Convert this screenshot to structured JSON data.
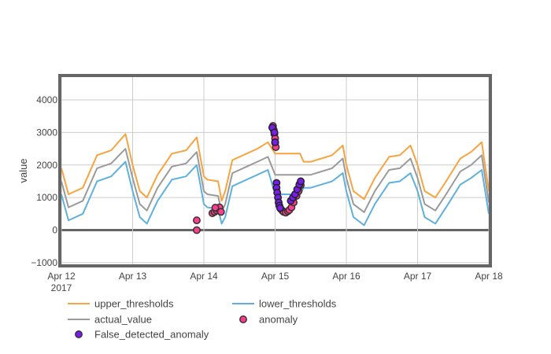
{
  "chart_data": {
    "type": "line",
    "title": "",
    "xlabel": "",
    "ylabel": "value",
    "x_start": "2017-04-12",
    "x_end": "2017-04-18",
    "xlim_days": [
      0,
      6
    ],
    "ylim": [
      -1050,
      4700
    ],
    "y_ticks": [
      -1000,
      0,
      1000,
      2000,
      3000,
      4000
    ],
    "y_tick_labels": [
      "−1000",
      "0",
      "1000",
      "2000",
      "3000",
      "4000"
    ],
    "x_ticks": [
      0,
      1,
      2,
      3,
      4,
      5,
      6
    ],
    "x_tick_labels": [
      "Apr 12",
      "Apr 13",
      "Apr 14",
      "Apr 15",
      "Apr 16",
      "Apr 17",
      "Apr 18"
    ],
    "x_tick_year": "2017",
    "grid": true,
    "legend_position": "bottom",
    "series": [
      {
        "name": "upper_thresholds",
        "color": "#f7a440",
        "x": [
          0,
          0.1,
          0.3,
          0.5,
          0.7,
          0.9,
          1.0,
          1.1,
          1.2,
          1.35,
          1.55,
          1.75,
          1.9,
          2.0,
          2.05,
          2.2,
          2.25,
          2.3,
          2.4,
          2.6,
          2.75,
          2.9,
          3.0,
          3.35,
          3.4,
          3.5,
          3.65,
          3.8,
          3.95,
          4.0,
          4.1,
          4.25,
          4.4,
          4.6,
          4.75,
          4.9,
          5.0,
          5.1,
          5.25,
          5.4,
          5.6,
          5.75,
          5.9,
          6.0
        ],
        "y": [
          1900,
          1100,
          1300,
          2300,
          2450,
          2950,
          2000,
          1200,
          1000,
          1700,
          2350,
          2450,
          2850,
          1650,
          1550,
          1500,
          900,
          1200,
          2150,
          2350,
          2500,
          2700,
          2350,
          2350,
          2100,
          2100,
          2200,
          2300,
          2600,
          2000,
          1200,
          950,
          1600,
          2250,
          2300,
          2600,
          2000,
          1200,
          1000,
          1500,
          2200,
          2400,
          2700,
          1200
        ]
      },
      {
        "name": "lower_thresholds",
        "color": "#5fb0dc",
        "x": [
          0,
          0.1,
          0.3,
          0.5,
          0.7,
          0.9,
          1.0,
          1.1,
          1.2,
          1.35,
          1.55,
          1.75,
          1.9,
          2.0,
          2.05,
          2.2,
          2.25,
          2.3,
          2.4,
          2.6,
          2.75,
          2.9,
          3.0,
          3.35,
          3.4,
          3.5,
          3.65,
          3.8,
          3.95,
          4.0,
          4.1,
          4.25,
          4.4,
          4.6,
          4.75,
          4.9,
          5.0,
          5.1,
          5.25,
          5.4,
          5.6,
          5.75,
          5.9,
          6.0
        ],
        "y": [
          1100,
          300,
          500,
          1500,
          1650,
          2100,
          1200,
          400,
          200,
          900,
          1550,
          1650,
          2000,
          800,
          700,
          650,
          200,
          400,
          1350,
          1550,
          1700,
          1850,
          1100,
          1100,
          1300,
          1300,
          1400,
          1500,
          1750,
          1200,
          400,
          150,
          800,
          1450,
          1500,
          1750,
          1200,
          400,
          200,
          700,
          1400,
          1600,
          1850,
          500
        ]
      },
      {
        "name": "actual_value",
        "color": "#9a9a9a",
        "x": [
          0,
          0.1,
          0.3,
          0.5,
          0.7,
          0.9,
          1.0,
          1.1,
          1.2,
          1.35,
          1.55,
          1.75,
          1.9,
          2.0,
          2.05,
          2.2,
          2.25,
          2.3,
          2.4,
          2.6,
          2.75,
          2.9,
          3.0,
          3.35,
          3.4,
          3.5,
          3.65,
          3.8,
          3.95,
          4.0,
          4.1,
          4.25,
          4.4,
          4.6,
          4.75,
          4.9,
          5.0,
          5.1,
          5.25,
          5.4,
          5.6,
          5.75,
          5.9,
          6.0
        ],
        "y": [
          1500,
          700,
          900,
          1900,
          2050,
          2500,
          1600,
          800,
          600,
          1300,
          1950,
          2050,
          2400,
          1200,
          1100,
          1050,
          550,
          800,
          1750,
          1950,
          2100,
          2250,
          1700,
          1700,
          1700,
          1700,
          1800,
          1900,
          2200,
          1600,
          800,
          550,
          1200,
          1850,
          1900,
          2200,
          1600,
          800,
          600,
          1100,
          1800,
          2000,
          2300,
          850
        ]
      }
    ],
    "markers": [
      {
        "name": "anomaly",
        "fill": "#ff3d8e",
        "stroke": "#333333",
        "points": [
          [
            1.9,
            0
          ],
          [
            1.9,
            300
          ],
          [
            2.12,
            520
          ],
          [
            2.15,
            560
          ],
          [
            2.18,
            600
          ],
          [
            2.2,
            650
          ],
          [
            2.22,
            700
          ],
          [
            2.16,
            690
          ],
          [
            2.24,
            560
          ],
          [
            2.97,
            3200
          ],
          [
            2.98,
            3080
          ],
          [
            2.99,
            2950
          ],
          [
            3.0,
            2820
          ],
          [
            3.0,
            2680
          ],
          [
            3.01,
            2550
          ],
          [
            3.08,
            650
          ],
          [
            3.1,
            600
          ],
          [
            3.12,
            560
          ],
          [
            3.15,
            540
          ],
          [
            3.18,
            580
          ],
          [
            3.2,
            620
          ],
          [
            3.23,
            700
          ],
          [
            3.26,
            850
          ],
          [
            3.3,
            1050
          ],
          [
            3.33,
            1200
          ],
          [
            3.36,
            1380
          ]
        ]
      },
      {
        "name": "False_detected_anomaly",
        "fill": "#7a1cf0",
        "stroke": "#222222",
        "points": [
          [
            2.96,
            3150
          ],
          [
            2.99,
            3000
          ],
          [
            3.0,
            2700
          ],
          [
            3.02,
            1450
          ],
          [
            3.02,
            1300
          ],
          [
            3.03,
            1150
          ],
          [
            3.04,
            1000
          ],
          [
            3.05,
            850
          ],
          [
            3.06,
            750
          ],
          [
            3.07,
            680
          ],
          [
            3.22,
            900
          ],
          [
            3.25,
            1000
          ],
          [
            3.28,
            1100
          ],
          [
            3.31,
            1250
          ],
          [
            3.34,
            1400
          ],
          [
            3.36,
            1500
          ]
        ]
      }
    ],
    "legend": [
      {
        "label": "upper_thresholds",
        "kind": "line",
        "color": "#f7a440"
      },
      {
        "label": "lower_thresholds",
        "kind": "line",
        "color": "#5fb0dc"
      },
      {
        "label": "actual_value",
        "kind": "line",
        "color": "#9a9a9a"
      },
      {
        "label": "anomaly",
        "kind": "marker",
        "color": "#ff3d8e"
      },
      {
        "label": "False_detected_anomaly",
        "kind": "marker",
        "color": "#7a1cf0"
      }
    ]
  }
}
